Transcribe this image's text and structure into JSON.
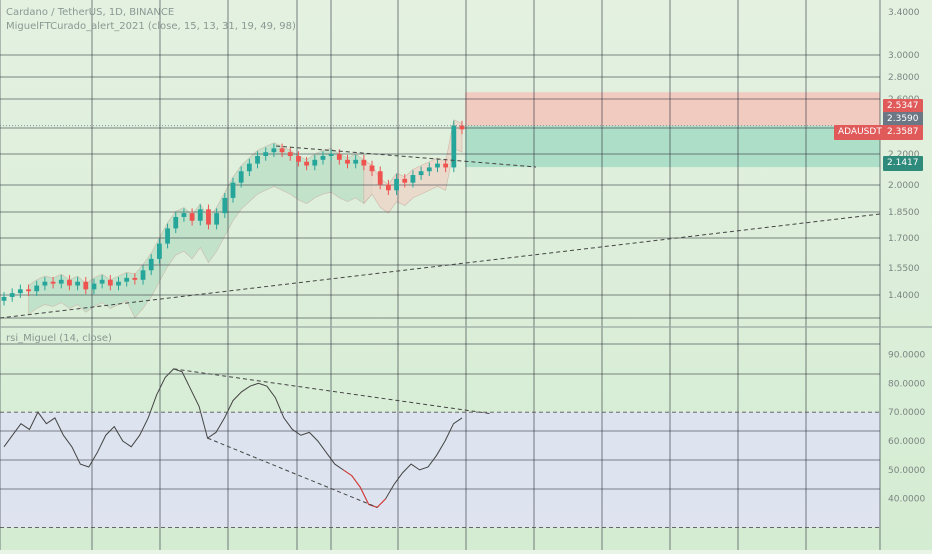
{
  "legend": {
    "main_title": "Cardano / TetherUS, 1D, BINANCE",
    "indicator": "MiguelFTCurado_alert_2021 (close, 15, 13, 31, 19, 49, 98)",
    "rsi": "rsi_Miguel (14, close)"
  },
  "colors": {
    "background_top": "#e4f1e1",
    "background_bottom": "#d4ecd2",
    "rsi_band": "#dfe2f3",
    "grid": "#2b2f3a",
    "bull": "#26a69a",
    "bear": "#ef5350",
    "stop_zone": "#f4c7bd",
    "target_zone": "#a7dcc4",
    "cloud_green": "#b9dec5",
    "cloud_red": "#ecd6c9",
    "rsi_line": "#444444",
    "rsi_highlight": "#e53935",
    "tag_red": "#e05a5a",
    "tag_dark": "#6b7785",
    "tag_green": "#2e8a7a"
  },
  "price_axis": {
    "ticks": [
      "3.4000",
      "3.0000",
      "2.8000",
      "2.6000",
      "2.4000",
      "2.2000",
      "2.0000",
      "1.8500",
      "1.7000",
      "1.5500",
      "1.4000"
    ]
  },
  "rsi_axis": {
    "ticks": [
      "90.0000",
      "80.0000",
      "70.0000",
      "60.0000",
      "50.0000",
      "40.0000"
    ],
    "upper_level": 70,
    "lower_level": 30
  },
  "price_tags": [
    {
      "label": "2.5347",
      "color": "tag_red"
    },
    {
      "label": "2.3590",
      "color": "tag_dark"
    },
    {
      "label": "ADAUSDT",
      "color": "tag_red"
    },
    {
      "label": "2.3587",
      "color": "tag_red"
    },
    {
      "label": "2.1417",
      "color": "tag_green"
    }
  ],
  "chart_data": [
    {
      "type": "candlestick",
      "description_series": "ADAUSDT daily price",
      "close_values_estimated": [
        1.46,
        1.48,
        1.5,
        1.49,
        1.52,
        1.54,
        1.53,
        1.55,
        1.52,
        1.54,
        1.5,
        1.53,
        1.55,
        1.52,
        1.54,
        1.56,
        1.55,
        1.6,
        1.66,
        1.74,
        1.82,
        1.88,
        1.9,
        1.86,
        1.92,
        1.84,
        1.9,
        1.98,
        2.06,
        2.12,
        2.16,
        2.2,
        2.22,
        2.24,
        2.22,
        2.2,
        2.17,
        2.15,
        2.18,
        2.2,
        2.21,
        2.18,
        2.16,
        2.18,
        2.15,
        2.12,
        2.05,
        2.02,
        2.08,
        2.06,
        2.1,
        2.12,
        2.14,
        2.16,
        2.14,
        2.36,
        2.34
      ],
      "current_price": 2.3587,
      "long_position": {
        "entry": 2.359,
        "stop": 2.5347,
        "target": 2.1417
      }
    },
    {
      "type": "line",
      "description_series": "RSI 14",
      "ylim": [
        25,
        95
      ],
      "values": [
        58,
        62,
        66,
        64,
        70,
        66,
        68,
        62,
        58,
        52,
        51,
        56,
        62,
        65,
        60,
        58,
        62,
        68,
        76,
        82,
        85,
        84,
        78,
        72,
        61,
        63,
        68,
        74,
        77,
        79,
        80,
        79,
        75,
        68,
        64,
        62,
        63,
        60,
        56,
        52,
        50,
        48,
        44,
        38,
        37,
        40,
        45,
        49,
        52,
        50,
        51,
        55,
        60,
        66,
        68
      ]
    }
  ]
}
